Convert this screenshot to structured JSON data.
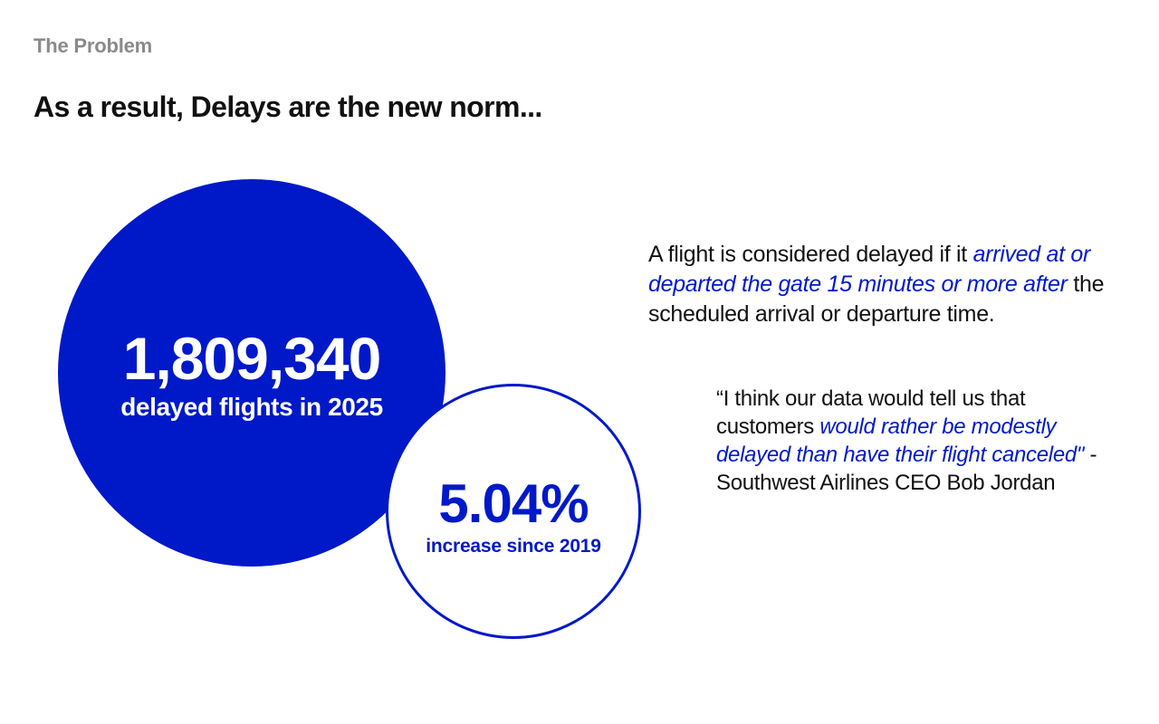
{
  "slide": {
    "eyebrow": "The Problem",
    "title": "As a result, Delays are the new norm..."
  },
  "stat_primary": {
    "value": "1,809,340",
    "caption": "delayed flights in 2025"
  },
  "stat_secondary": {
    "value": "5.04%",
    "caption": "increase since 2019"
  },
  "definition": {
    "lead": "A flight is considered delayed if it ",
    "emphasis": "arrived at or departed the gate 15 minutes or more after",
    "tail": " the scheduled arrival or departure time."
  },
  "quote": {
    "lead": "“I think our data would tell us that customers ",
    "emphasis": "would rather be modestly delayed than have their flight canceled\"",
    "attribution": " - Southwest Airlines CEO Bob Jordan"
  },
  "colors": {
    "accent": "#0019c8",
    "eyebrow": "#8a8a8a",
    "text": "#111111"
  }
}
